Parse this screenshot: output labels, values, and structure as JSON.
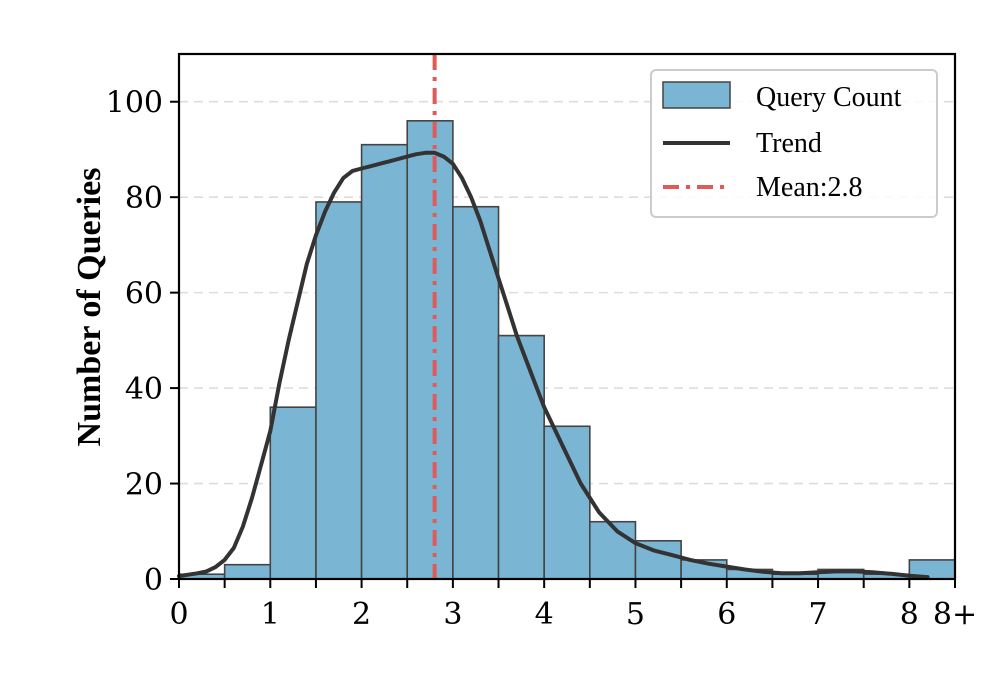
{
  "chart_data": {
    "type": "bar",
    "ylabel": "Number of Queries",
    "xlabel": "",
    "xlim": [
      0,
      8.5
    ],
    "ylim": [
      0,
      110
    ],
    "grid": "y-dashed",
    "legend_placement": "top-right",
    "x_tick_values": [
      0,
      1,
      2,
      3,
      4,
      5,
      6,
      7,
      8,
      8.5
    ],
    "x_tick_labels": [
      "0",
      "1",
      "2",
      "3",
      "4",
      "5",
      "6",
      "7",
      "8",
      "8+"
    ],
    "y_ticks": [
      0,
      20,
      40,
      60,
      80,
      100
    ],
    "bins": [
      {
        "x0": 0.0,
        "x1": 0.5,
        "value": 1
      },
      {
        "x0": 0.5,
        "x1": 1.0,
        "value": 3
      },
      {
        "x0": 1.0,
        "x1": 1.5,
        "value": 36
      },
      {
        "x0": 1.5,
        "x1": 2.0,
        "value": 79
      },
      {
        "x0": 2.0,
        "x1": 2.5,
        "value": 91
      },
      {
        "x0": 2.5,
        "x1": 3.0,
        "value": 96
      },
      {
        "x0": 3.0,
        "x1": 3.5,
        "value": 78
      },
      {
        "x0": 3.5,
        "x1": 4.0,
        "value": 51
      },
      {
        "x0": 4.0,
        "x1": 4.5,
        "value": 32
      },
      {
        "x0": 4.5,
        "x1": 5.0,
        "value": 12
      },
      {
        "x0": 5.0,
        "x1": 5.5,
        "value": 8
      },
      {
        "x0": 5.5,
        "x1": 6.0,
        "value": 4
      },
      {
        "x0": 6.0,
        "x1": 6.5,
        "value": 2
      },
      {
        "x0": 6.5,
        "x1": 7.0,
        "value": 1
      },
      {
        "x0": 7.0,
        "x1": 7.5,
        "value": 2
      },
      {
        "x0": 7.5,
        "x1": 8.0,
        "value": 1
      },
      {
        "x0": 8.0,
        "x1": 8.5,
        "value": 4
      }
    ],
    "trend": {
      "x": [
        0.0,
        0.1,
        0.2,
        0.3,
        0.4,
        0.5,
        0.6,
        0.7,
        0.8,
        0.9,
        1.0,
        1.1,
        1.2,
        1.3,
        1.4,
        1.5,
        1.6,
        1.7,
        1.8,
        1.9,
        2.0,
        2.1,
        2.2,
        2.3,
        2.4,
        2.5,
        2.6,
        2.7,
        2.8,
        2.9,
        3.0,
        3.1,
        3.2,
        3.3,
        3.4,
        3.5,
        3.6,
        3.7,
        3.8,
        3.9,
        4.0,
        4.2,
        4.4,
        4.6,
        4.8,
        5.0,
        5.2,
        5.4,
        5.6,
        5.8,
        6.0,
        6.2,
        6.4,
        6.6,
        6.8,
        7.0,
        7.2,
        7.4,
        7.6,
        7.8,
        8.0,
        8.2
      ],
      "y": [
        0.6,
        0.9,
        1.2,
        1.6,
        2.5,
        4,
        6.5,
        11,
        17,
        24,
        31,
        41,
        50,
        58,
        66,
        72,
        77,
        81,
        84,
        85.5,
        86,
        86.5,
        87,
        87.5,
        88,
        88.5,
        89,
        89.3,
        89.3,
        88.5,
        87,
        84,
        80,
        75,
        69,
        63,
        57,
        51,
        46,
        41,
        36,
        28,
        20,
        14,
        10,
        7.5,
        6,
        5,
        4,
        3.2,
        2.6,
        2,
        1.5,
        1.2,
        1.2,
        1.4,
        1.6,
        1.6,
        1.4,
        1.1,
        0.7,
        0.4
      ]
    },
    "mean": 2.8,
    "legend": {
      "bars": "Query Count",
      "trend": "Trend",
      "mean": "Mean:2.8"
    },
    "colors": {
      "bar_fill": "#7ab6d3",
      "bar_edge": "#444444",
      "trend_line": "#333333",
      "mean_line": "#e05a5a",
      "grid": "#dddddd"
    }
  }
}
